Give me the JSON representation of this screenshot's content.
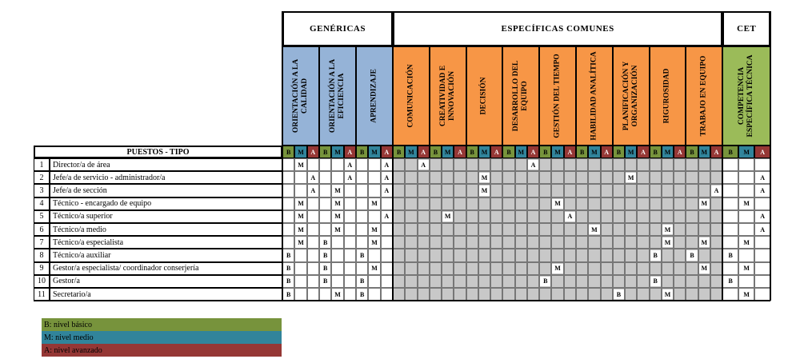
{
  "groups": [
    {
      "label": "GENÉRICAS"
    },
    {
      "label": "ESPECÍFICAS COMUNES"
    },
    {
      "label": "CET"
    }
  ],
  "competencies": [
    {
      "label": "ORIENTACIÓN A LA CALIDAD",
      "group": 0,
      "color": "#95b3d7"
    },
    {
      "label": "ORIENTACIÓN A LA EFICIENCIA",
      "group": 0,
      "color": "#95b3d7"
    },
    {
      "label": "APRENDIZAJE",
      "group": 0,
      "color": "#95b3d7"
    },
    {
      "label": "COMUNICACIÓN",
      "group": 1,
      "color": "#f79646"
    },
    {
      "label": "CREATIVIDAD E INNOVACIÓN",
      "group": 1,
      "color": "#f79646"
    },
    {
      "label": "DECISIÓN",
      "group": 1,
      "color": "#f79646"
    },
    {
      "label": "DESARROLLO DEL EQUIPO",
      "group": 1,
      "color": "#f79646"
    },
    {
      "label": "GESTIÓN DEL TIEMPO",
      "group": 1,
      "color": "#f79646"
    },
    {
      "label": "HABILIDAD ANALÍTICA",
      "group": 1,
      "color": "#f79646"
    },
    {
      "label": "PLANIFICACIÓN Y ORGANIZACIÓN",
      "group": 1,
      "color": "#f79646"
    },
    {
      "label": "RIGUROSIDAD",
      "group": 1,
      "color": "#f79646"
    },
    {
      "label": "TRABAJO EN EQUIPO",
      "group": 1,
      "color": "#f79646"
    },
    {
      "label": "COMPETENCIA ESPECÍFICA TÉCNICA",
      "group": 2,
      "color": "#9bbb59"
    }
  ],
  "levels": [
    {
      "code": "B",
      "color": "#77933c"
    },
    {
      "code": "M",
      "color": "#31849b"
    },
    {
      "code": "A",
      "color": "#953735"
    }
  ],
  "table_header": {
    "puestos": "PUESTOS - TIPO"
  },
  "rows": [
    {
      "num": "1",
      "name": "Director/a de área",
      "marks": [
        "M",
        "A",
        "A",
        "A",
        "",
        "",
        "A",
        "",
        "",
        "",
        "",
        "",
        ""
      ]
    },
    {
      "num": "2",
      "name": "Jefe/a de servicio - administrador/a",
      "marks": [
        "A",
        "A",
        "A",
        "",
        "",
        "M",
        "",
        "",
        "",
        "M",
        "",
        "",
        "A"
      ]
    },
    {
      "num": "3",
      "name": "Jefe/a de sección",
      "marks": [
        "A",
        "M",
        "A",
        "",
        "",
        "M",
        "",
        "",
        "",
        "",
        "",
        "A",
        "A"
      ]
    },
    {
      "num": "4",
      "name": "Técnico - encargado de equipo",
      "marks": [
        "M",
        "M",
        "M",
        "",
        "",
        "",
        "",
        "M",
        "",
        "",
        "",
        "M",
        "M"
      ]
    },
    {
      "num": "5",
      "name": "Técnico/a superior",
      "marks": [
        "M",
        "M",
        "A",
        "",
        "M",
        "",
        "",
        "A",
        "",
        "",
        "",
        "",
        "A"
      ]
    },
    {
      "num": "6",
      "name": "Técnico/a medio",
      "marks": [
        "M",
        "M",
        "M",
        "",
        "",
        "",
        "",
        "",
        "M",
        "",
        "M",
        "",
        "A"
      ]
    },
    {
      "num": "7",
      "name": "Técnico/a especialista",
      "marks": [
        "M",
        "B",
        "M",
        "",
        "",
        "",
        "",
        "",
        "",
        "",
        "M",
        "M",
        "M"
      ]
    },
    {
      "num": "8",
      "name": "Técnico/a auxiliar",
      "marks": [
        "B",
        "B",
        "B",
        "",
        "",
        "",
        "",
        "",
        "",
        "",
        "B",
        "B",
        "B"
      ]
    },
    {
      "num": "9",
      "name": "Gestor/a especialista/ coordinador conserjería",
      "marks": [
        "B",
        "B",
        "M",
        "",
        "",
        "",
        "",
        "M",
        "",
        "",
        "",
        "M",
        "M"
      ]
    },
    {
      "num": "10",
      "name": "Gestor/a",
      "marks": [
        "B",
        "B",
        "B",
        "",
        "",
        "",
        "",
        "B",
        "",
        "",
        "B",
        "",
        "B"
      ]
    },
    {
      "num": "11",
      "name": "Secretario/a",
      "marks": [
        "B",
        "M",
        "B",
        "",
        "",
        "",
        "",
        "",
        "",
        "B",
        "M",
        "",
        "M"
      ]
    }
  ],
  "legend": [
    {
      "text": "B: nivel básico",
      "color": "#77933c"
    },
    {
      "text": "M: nivel medio",
      "color": "#31849b"
    },
    {
      "text": "A: nivel avanzado",
      "color": "#953735"
    }
  ]
}
